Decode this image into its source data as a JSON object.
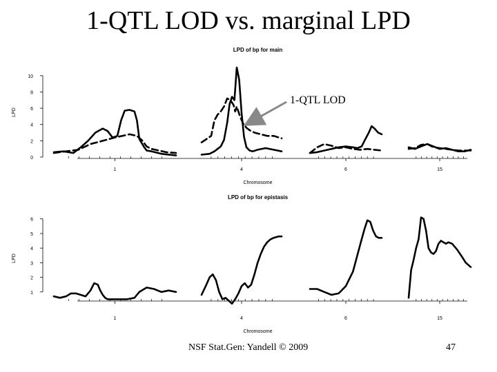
{
  "slide": {
    "title": "1-QTL LOD vs. marginal LPD",
    "footer": "NSF Stat.Gen: Yandell © 2009",
    "page_number": "47"
  },
  "annotation": {
    "text": "1-QTL LOD"
  },
  "colors": {
    "line": "#000000",
    "arrow": "#888888",
    "tick": "#000000"
  },
  "chart_data": [
    {
      "type": "line",
      "title": "LPD of bp for main",
      "xlabel": "Chromosome",
      "ylabel": "LPD",
      "ylim": [
        0,
        11
      ],
      "y_ticks": [
        0,
        2,
        4,
        6,
        8,
        10
      ],
      "chromosomes": [
        {
          "label": "1",
          "x_range": [
            0,
            100
          ],
          "label_at": 50
        },
        {
          "label": "4",
          "x_range": [
            0,
            100
          ],
          "label_at": 50
        },
        {
          "label": "6",
          "x_range": [
            0,
            100
          ],
          "label_at": 50
        },
        {
          "label": "15",
          "x_range": [
            0,
            100
          ],
          "label_at": 50
        }
      ],
      "series": [
        {
          "style": "solid",
          "segments": [
            {
              "chr": "1",
              "x": [
                0,
                8,
                16,
                22,
                28,
                34,
                40,
                44,
                48,
                52,
                55,
                58,
                62,
                66,
                68,
                70,
                74,
                76,
                80,
                88,
                100
              ],
              "y": [
                0.6,
                0.7,
                0.5,
                1.2,
                2.0,
                3.0,
                3.5,
                3.2,
                2.4,
                2.6,
                4.5,
                5.7,
                5.8,
                5.6,
                4.5,
                2.2,
                1.2,
                0.8,
                0.7,
                0.4,
                0.2
              ]
            },
            {
              "chr": "4",
              "x": [
                0,
                10,
                16,
                20,
                24,
                28,
                32,
                35,
                38,
                41,
                44,
                47,
                50,
                53,
                56,
                60,
                64,
                70,
                80,
                100
              ],
              "y": [
                0.3,
                0.4,
                0.7,
                1.0,
                1.3,
                2.1,
                4.2,
                6.5,
                7.4,
                7.0,
                11.0,
                9.5,
                5.4,
                2.5,
                1.2,
                0.8,
                0.7,
                0.9,
                1.1,
                0.7
              ]
            },
            {
              "chr": "6",
              "x": [
                0,
                10,
                20,
                30,
                40,
                50,
                60,
                66,
                72,
                76,
                82,
                86,
                90,
                95,
                100
              ],
              "y": [
                0.5,
                0.6,
                0.8,
                1.0,
                1.2,
                1.3,
                1.2,
                1.1,
                1.3,
                2.0,
                3.0,
                3.8,
                3.5,
                3.0,
                2.8
              ]
            },
            {
              "chr": "15",
              "x": [
                0,
                10,
                20,
                30,
                40,
                50,
                60,
                70,
                80,
                90,
                100
              ],
              "y": [
                1.2,
                1.0,
                1.3,
                1.6,
                1.3,
                1.0,
                1.1,
                0.9,
                0.7,
                0.7,
                0.9
              ]
            }
          ]
        },
        {
          "style": "dashed",
          "segments": [
            {
              "chr": "1",
              "x": [
                0,
                10,
                20,
                30,
                40,
                50,
                56,
                62,
                68,
                72,
                76,
                80,
                86,
                92,
                100
              ],
              "y": [
                0.5,
                0.7,
                0.9,
                1.6,
                2.0,
                2.4,
                2.6,
                2.8,
                2.6,
                2.1,
                1.3,
                1.0,
                0.8,
                0.6,
                0.5
              ]
            },
            {
              "chr": "4",
              "x": [
                0,
                6,
                12,
                16,
                20,
                24,
                28,
                32,
                36,
                40,
                42,
                44,
                48,
                52,
                56,
                60,
                66,
                74,
                82,
                90,
                100
              ],
              "y": [
                1.8,
                2.2,
                2.6,
                4.5,
                5.2,
                5.6,
                6.2,
                7.2,
                7.0,
                6.4,
                5.6,
                6.2,
                5.0,
                4.1,
                3.6,
                3.3,
                3.0,
                2.8,
                2.6,
                2.6,
                2.3
              ]
            },
            {
              "chr": "6",
              "x": [
                0,
                10,
                20,
                30,
                40,
                50,
                60,
                70,
                80,
                90,
                100
              ],
              "y": [
                0.5,
                1.2,
                1.6,
                1.4,
                1.1,
                1.2,
                1.0,
                0.9,
                1.0,
                0.9,
                0.8
              ]
            },
            {
              "chr": "15",
              "x": [
                0,
                10,
                20,
                30,
                40,
                50,
                60,
                70,
                80,
                90,
                100
              ],
              "y": [
                1.0,
                1.1,
                1.5,
                1.6,
                1.2,
                1.1,
                1.0,
                0.9,
                0.8,
                0.8,
                0.8
              ]
            }
          ]
        }
      ]
    },
    {
      "type": "line",
      "title": "LPD of bp for epistasis",
      "xlabel": "Chromosome",
      "ylabel": "LPD",
      "ylim": [
        0,
        6.6
      ],
      "y_ticks": [
        1,
        2,
        3,
        4,
        5,
        6
      ],
      "chromosomes": [
        {
          "label": "1",
          "x_range": [
            0,
            100
          ],
          "label_at": 50
        },
        {
          "label": "4",
          "x_range": [
            0,
            100
          ],
          "label_at": 50
        },
        {
          "label": "6",
          "x_range": [
            0,
            100
          ],
          "label_at": 50
        },
        {
          "label": "15",
          "x_range": [
            0,
            100
          ],
          "label_at": 50
        }
      ],
      "series": [
        {
          "style": "solid",
          "segments": [
            {
              "chr": "1",
              "x": [
                0,
                5,
                10,
                14,
                18,
                22,
                26,
                30,
                33,
                36,
                38,
                40,
                42,
                44,
                48,
                54,
                60,
                66,
                70,
                76,
                82,
                88,
                94,
                100
              ],
              "y": [
                0.7,
                0.6,
                0.7,
                0.9,
                0.9,
                0.8,
                0.7,
                1.1,
                1.6,
                1.5,
                1.1,
                0.8,
                0.6,
                0.5,
                0.5,
                0.5,
                0.5,
                0.6,
                1.0,
                1.3,
                1.2,
                1.0,
                1.1,
                1.0
              ]
            },
            {
              "chr": "4",
              "x": [
                0,
                6,
                10,
                14,
                18,
                22,
                26,
                30,
                34,
                38,
                42,
                46,
                50,
                54,
                58,
                62,
                66,
                70,
                74,
                78,
                82,
                86,
                90,
                96,
                100
              ],
              "y": [
                0.8,
                1.5,
                2.0,
                2.2,
                1.8,
                1.0,
                0.5,
                0.6,
                0.4,
                0.2,
                0.5,
                0.9,
                1.4,
                1.6,
                1.3,
                1.5,
                2.2,
                3.0,
                3.6,
                4.1,
                4.4,
                4.6,
                4.7,
                4.8,
                4.8
              ]
            },
            {
              "chr": "6",
              "x": [
                0,
                10,
                20,
                30,
                40,
                50,
                60,
                66,
                72,
                76,
                80,
                84,
                88,
                92,
                96,
                100
              ],
              "y": [
                1.2,
                1.2,
                1.0,
                0.8,
                0.9,
                1.4,
                2.4,
                3.5,
                4.6,
                5.3,
                5.9,
                5.8,
                5.2,
                4.8,
                4.7,
                4.7
              ]
            },
            {
              "chr": "15",
              "x": [
                0,
                4,
                8,
                12,
                16,
                20,
                24,
                28,
                32,
                36,
                40,
                44,
                48,
                52,
                56,
                60,
                64,
                70,
                78,
                86,
                92,
                100
              ],
              "y": [
                0.6,
                2.5,
                3.2,
                4.0,
                4.6,
                6.1,
                6.0,
                5.2,
                4.0,
                3.7,
                3.6,
                3.8,
                4.3,
                4.5,
                4.4,
                4.3,
                4.4,
                4.3,
                3.9,
                3.4,
                3.0,
                2.7
              ]
            }
          ]
        }
      ]
    }
  ]
}
